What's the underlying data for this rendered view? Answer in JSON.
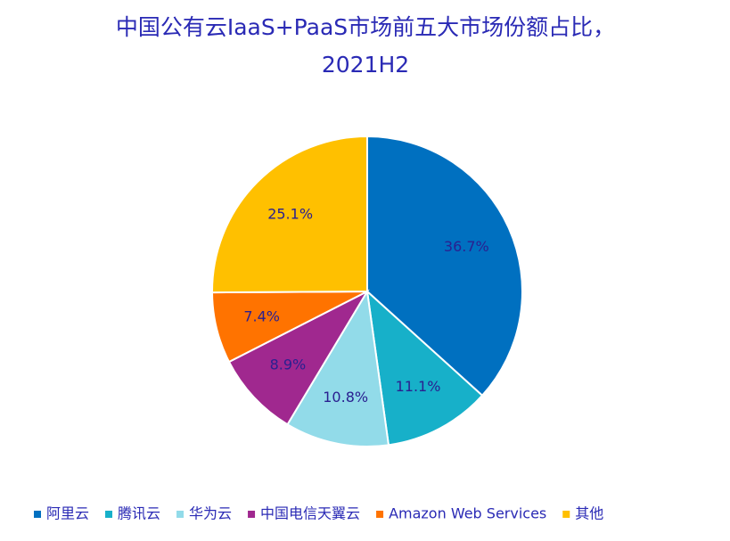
{
  "chart_data": {
    "type": "pie",
    "title": [
      "中国公有云IaaS+PaaS市场前五大市场份额占比，",
      "2021H2"
    ],
    "categories": [
      "阿里云",
      "腾讯云",
      "华为云",
      "中国电信天翼云",
      "Amazon Web Services",
      "其他"
    ],
    "values": [
      36.7,
      11.1,
      10.8,
      8.9,
      7.4,
      25.1
    ],
    "value_labels": [
      "36.7%",
      "11.1%",
      "10.8%",
      "8.9%",
      "7.4%",
      "25.1%"
    ],
    "colors": [
      "#0070c0",
      "#17b0c9",
      "#92dbe9",
      "#a0288f",
      "#ff7300",
      "#ffc000"
    ],
    "legend": "bottom"
  }
}
